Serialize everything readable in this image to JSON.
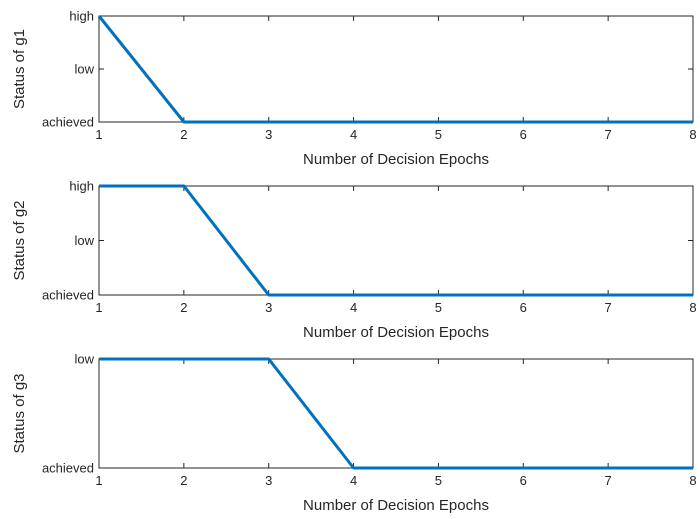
{
  "chart_data": [
    {
      "type": "line",
      "xlabel": "Number of Decision Epochs",
      "ylabel": "Status of g1",
      "x": [
        1,
        2,
        3,
        4,
        5,
        6,
        7,
        8
      ],
      "xlim": [
        1,
        8
      ],
      "xticks": [
        "1",
        "2",
        "3",
        "4",
        "5",
        "6",
        "7",
        "8"
      ],
      "yticks": [
        "achieved",
        "low",
        "high"
      ],
      "ylim": [
        0,
        2
      ],
      "series": [
        {
          "values": [
            2,
            0,
            0,
            0,
            0,
            0,
            0,
            0
          ],
          "color": "#0072BD"
        }
      ],
      "grid": false
    },
    {
      "type": "line",
      "xlabel": "Number of Decision Epochs",
      "ylabel": "Status of g2",
      "x": [
        1,
        2,
        3,
        4,
        5,
        6,
        7,
        8
      ],
      "xlim": [
        1,
        8
      ],
      "xticks": [
        "1",
        "2",
        "3",
        "4",
        "5",
        "6",
        "7",
        "8"
      ],
      "yticks": [
        "achieved",
        "low",
        "high"
      ],
      "ylim": [
        0,
        2
      ],
      "series": [
        {
          "values": [
            2,
            2,
            0,
            0,
            0,
            0,
            0,
            0
          ],
          "color": "#0072BD"
        }
      ],
      "grid": false
    },
    {
      "type": "line",
      "xlabel": "Number of Decision Epochs",
      "ylabel": "Status of g3",
      "x": [
        1,
        2,
        3,
        4,
        5,
        6,
        7,
        8
      ],
      "xlim": [
        1,
        8
      ],
      "xticks": [
        "1",
        "2",
        "3",
        "4",
        "5",
        "6",
        "7",
        "8"
      ],
      "yticks": [
        "achieved",
        "low"
      ],
      "ylim": [
        0,
        1
      ],
      "series": [
        {
          "values": [
            1,
            1,
            1,
            0,
            0,
            0,
            0,
            0
          ],
          "color": "#0072BD"
        }
      ],
      "grid": false
    }
  ]
}
